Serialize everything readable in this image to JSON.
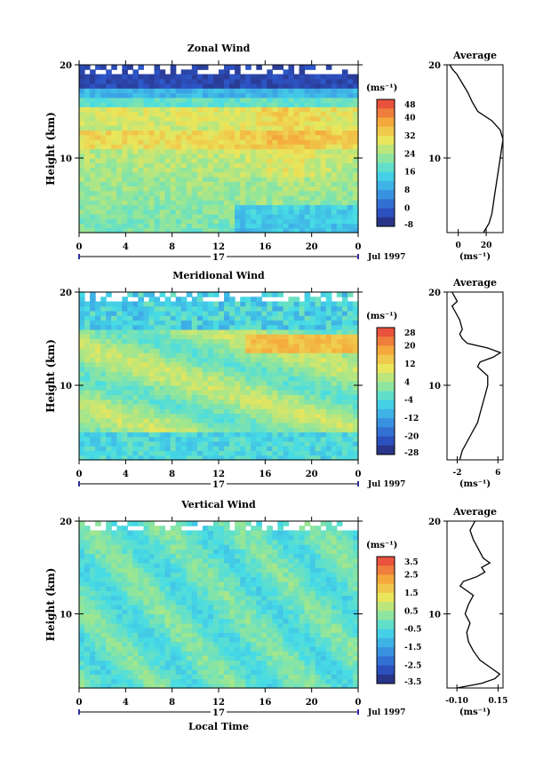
{
  "chart_data": [
    {
      "type": "heatmap",
      "title": "Zonal Wind",
      "ylabel": "Height (km)",
      "unit_label": "(ms⁻¹)",
      "x_ticks": [
        "0",
        "4",
        "8",
        "12",
        "16",
        "20",
        "0"
      ],
      "y_ticks": [
        "20",
        "10"
      ],
      "date_day": "17",
      "date_label": "Jul 1997",
      "ylim": [
        2,
        20
      ],
      "colorbar": {
        "min": -8,
        "max": 48,
        "tick_labels": [
          "48",
          "40",
          "32",
          "24",
          "16",
          "8",
          "0",
          "-8"
        ],
        "tick_values": [
          48,
          40,
          32,
          24,
          16,
          8,
          0,
          -8
        ]
      },
      "profile": {
        "title": "Average",
        "xlabel": "(ms⁻¹)",
        "x_ticks": [
          "0",
          "20"
        ],
        "x_tick_values": [
          0,
          20
        ],
        "xlim": [
          -8,
          32
        ],
        "y_ticks": [
          "20",
          "10"
        ],
        "heights": [
          2,
          3,
          4,
          5,
          6,
          7,
          8,
          9,
          10,
          11,
          12,
          13,
          14,
          15,
          16,
          17,
          18,
          18.5,
          19,
          19.5,
          20
        ],
        "values": [
          18,
          22,
          24,
          25,
          26,
          27,
          28,
          29,
          30,
          31,
          32,
          30,
          24,
          14,
          10,
          7,
          3,
          1,
          -1,
          -4,
          -6
        ]
      }
    },
    {
      "type": "heatmap",
      "title": "Meridional Wind",
      "ylabel": "Height (km)",
      "unit_label": "(ms⁻¹)",
      "x_ticks": [
        "0",
        "4",
        "8",
        "12",
        "16",
        "20",
        "0"
      ],
      "y_ticks": [
        "20",
        "10"
      ],
      "date_day": "17",
      "date_label": "Jul 1997",
      "ylim": [
        2,
        20
      ],
      "colorbar": {
        "min": -28,
        "max": 28,
        "tick_labels": [
          "28",
          "20",
          "12",
          "4",
          "-4",
          "-12",
          "-20",
          "-28"
        ],
        "tick_values": [
          28,
          20,
          12,
          4,
          -4,
          -12,
          -20,
          -28
        ]
      },
      "profile": {
        "title": "Average",
        "xlabel": "(ms⁻¹)",
        "x_ticks": [
          "-2",
          "6"
        ],
        "x_tick_values": [
          -2,
          6
        ],
        "xlim": [
          -4,
          7
        ],
        "y_ticks": [
          "20",
          "10"
        ],
        "heights": [
          2,
          3,
          4,
          5,
          6,
          7,
          8,
          9,
          10,
          11,
          12,
          12.5,
          13,
          13.5,
          14,
          14.5,
          15,
          15.5,
          16,
          17,
          18,
          18.5,
          19,
          19.5,
          20
        ],
        "values": [
          -1.5,
          -1,
          0,
          1,
          2,
          2.5,
          3,
          3.5,
          4,
          4,
          2,
          2.5,
          5,
          6.5,
          4,
          0,
          -1,
          -1.5,
          -1,
          -1.5,
          -2.5,
          -3,
          -2,
          -2.5,
          -3
        ]
      }
    },
    {
      "type": "heatmap",
      "title": "Vertical Wind",
      "ylabel": "Height (km)",
      "xlabel": "Local Time",
      "unit_label": "(ms⁻¹)",
      "x_ticks": [
        "0",
        "4",
        "8",
        "12",
        "16",
        "20",
        "0"
      ],
      "y_ticks": [
        "20",
        "10"
      ],
      "date_day": "17",
      "date_label": "Jul 1997",
      "ylim": [
        2,
        20
      ],
      "colorbar": {
        "min": -3.5,
        "max": 3.5,
        "tick_labels": [
          "3.5",
          "2.5",
          "1.5",
          "0.5",
          "-0.5",
          "-1.5",
          "-2.5",
          "-3.5"
        ],
        "tick_values": [
          3.5,
          2.5,
          1.5,
          0.5,
          -0.5,
          -1.5,
          -2.5,
          -3.5
        ]
      },
      "profile": {
        "title": "Average",
        "xlabel": "(ms⁻¹)",
        "x_ticks": [
          "-0.10",
          "0.15"
        ],
        "x_tick_values": [
          -0.1,
          0.15
        ],
        "xlim": [
          -0.16,
          0.18
        ],
        "y_ticks": [
          "20",
          "10"
        ],
        "heights": [
          2,
          2.5,
          3,
          3.5,
          4,
          4.5,
          5,
          6,
          7,
          8,
          9,
          10,
          11,
          12,
          13,
          13.5,
          14,
          14.5,
          15,
          15.5,
          16,
          17,
          18,
          19,
          20
        ],
        "values": [
          -0.1,
          0.05,
          0.13,
          0.16,
          0.12,
          0.08,
          0.04,
          0.0,
          -0.03,
          -0.04,
          -0.02,
          -0.05,
          -0.03,
          0.0,
          -0.08,
          -0.06,
          0.02,
          0.07,
          0.05,
          0.1,
          0.06,
          0.03,
          0.0,
          -0.02,
          0.01
        ]
      }
    }
  ]
}
